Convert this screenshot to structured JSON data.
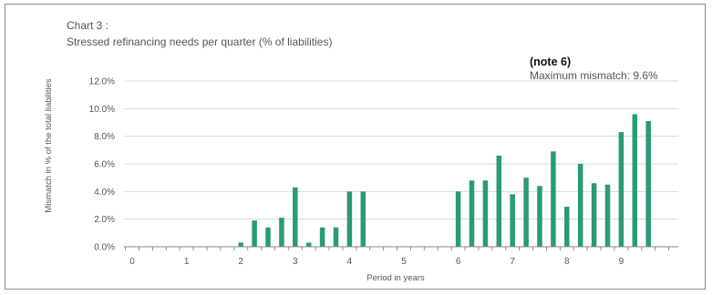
{
  "chart_data": {
    "type": "bar",
    "title": "Chart 3 :",
    "subtitle": "Stressed refinancing needs per quarter  (% of liabilities)",
    "note": "(note 6)",
    "annotation": "Maximum mismatch: 9.6%",
    "xlabel": "Period in years",
    "ylabel": "Mismatch in % of the total liabilities",
    "ylim": [
      0,
      12
    ],
    "yticks": [
      "0.0%",
      "2.0%",
      "4.0%",
      "6.0%",
      "8.0%",
      "10.0%",
      "12.0%"
    ],
    "xticks": [
      "0",
      "1",
      "2",
      "3",
      "4",
      "5",
      "6",
      "7",
      "8",
      "9"
    ],
    "xlim": [
      0,
      10
    ],
    "bar_color": "#2a9a78",
    "grid": "horizontal",
    "legend": "none",
    "x": [
      0.25,
      0.5,
      0.75,
      1.0,
      1.25,
      1.5,
      1.75,
      2.0,
      2.25,
      2.5,
      2.75,
      3.0,
      3.25,
      3.5,
      3.75,
      4.0,
      4.25,
      4.5,
      4.75,
      5.0,
      5.25,
      5.5,
      5.75,
      6.0,
      6.25,
      6.5,
      6.75,
      7.0,
      7.25,
      7.5,
      7.75,
      8.0,
      8.25,
      8.5,
      8.75,
      9.0,
      9.25,
      9.5,
      9.75
    ],
    "values": [
      0,
      0,
      0,
      0,
      0,
      0,
      0,
      0.3,
      1.9,
      1.4,
      2.1,
      4.3,
      0.3,
      1.4,
      1.4,
      4.0,
      4.0,
      0,
      0,
      0,
      0,
      0,
      0,
      4.0,
      4.8,
      4.8,
      6.6,
      3.8,
      5.0,
      4.4,
      6.9,
      2.9,
      6.0,
      4.6,
      4.5,
      8.3,
      9.6,
      9.1,
      0
    ]
  }
}
